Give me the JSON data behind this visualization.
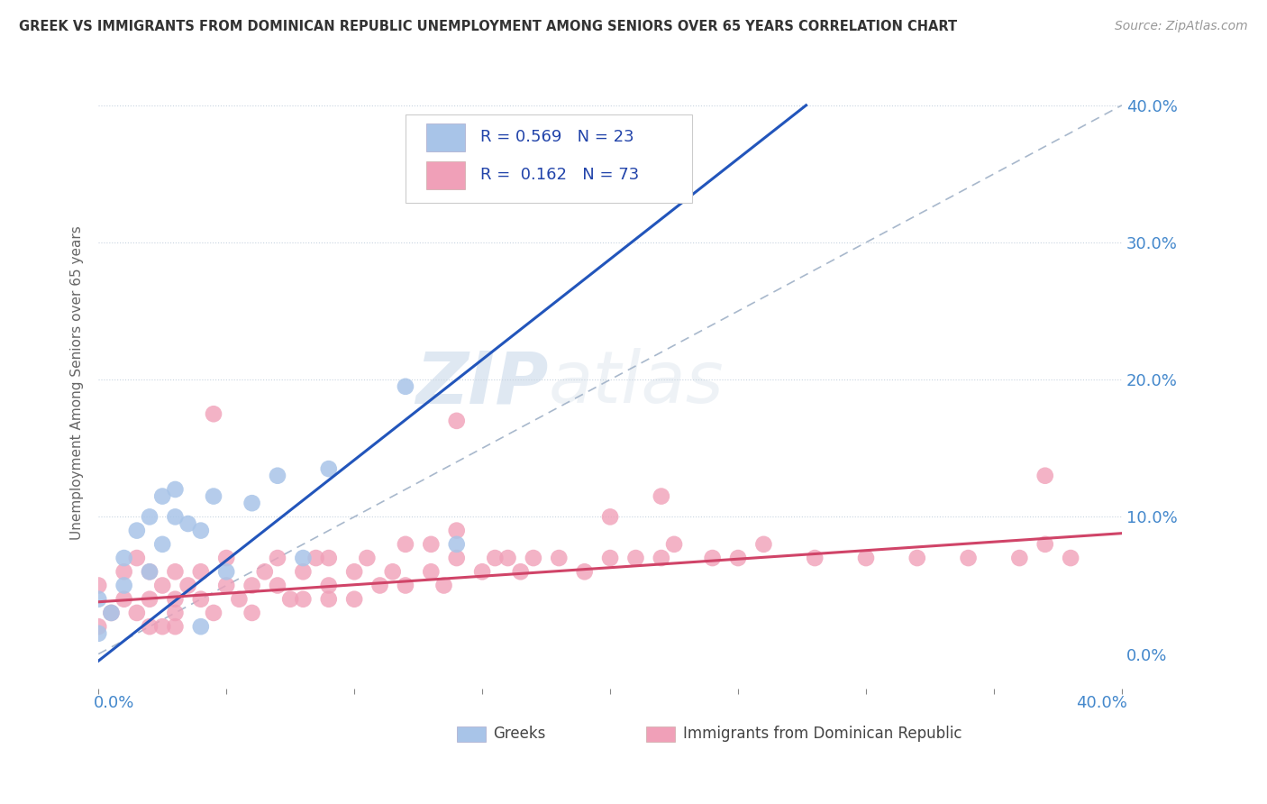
{
  "title": "GREEK VS IMMIGRANTS FROM DOMINICAN REPUBLIC UNEMPLOYMENT AMONG SENIORS OVER 65 YEARS CORRELATION CHART",
  "source": "Source: ZipAtlas.com",
  "ylabel": "Unemployment Among Seniors over 65 years",
  "greek_R": 0.569,
  "greek_N": 23,
  "dr_R": 0.162,
  "dr_N": 73,
  "greek_color": "#a8c4e8",
  "dr_color": "#f0a0b8",
  "greek_line_color": "#2255bb",
  "dr_line_color": "#d04468",
  "ref_line_color": "#a8b8cc",
  "legend_label_greek": "Greeks",
  "legend_label_dr": "Immigrants from Dominican Republic",
  "watermark_zip": "ZIP",
  "watermark_atlas": "atlas",
  "xlim": [
    0.0,
    0.4
  ],
  "ylim": [
    -0.025,
    0.42
  ],
  "yticks": [
    0.0,
    0.1,
    0.2,
    0.3,
    0.4
  ],
  "ytick_labels": [
    "0.0%",
    "10.0%",
    "20.0%",
    "30.0%",
    "40.0%"
  ],
  "greek_x": [
    0.0,
    0.0,
    0.005,
    0.01,
    0.01,
    0.015,
    0.02,
    0.02,
    0.025,
    0.025,
    0.03,
    0.03,
    0.035,
    0.04,
    0.04,
    0.045,
    0.05,
    0.06,
    0.07,
    0.08,
    0.09,
    0.12,
    0.14
  ],
  "greek_y": [
    0.015,
    0.04,
    0.03,
    0.05,
    0.07,
    0.09,
    0.06,
    0.1,
    0.08,
    0.115,
    0.1,
    0.12,
    0.095,
    0.02,
    0.09,
    0.115,
    0.06,
    0.11,
    0.13,
    0.07,
    0.135,
    0.195,
    0.08
  ],
  "dr_x": [
    0.0,
    0.0,
    0.005,
    0.01,
    0.01,
    0.015,
    0.015,
    0.02,
    0.02,
    0.02,
    0.025,
    0.025,
    0.03,
    0.03,
    0.03,
    0.03,
    0.035,
    0.04,
    0.04,
    0.045,
    0.05,
    0.05,
    0.055,
    0.06,
    0.06,
    0.065,
    0.07,
    0.07,
    0.075,
    0.08,
    0.08,
    0.085,
    0.09,
    0.09,
    0.1,
    0.1,
    0.105,
    0.11,
    0.115,
    0.12,
    0.12,
    0.13,
    0.13,
    0.135,
    0.14,
    0.14,
    0.15,
    0.155,
    0.16,
    0.165,
    0.17,
    0.18,
    0.19,
    0.2,
    0.21,
    0.22,
    0.225,
    0.24,
    0.25,
    0.26,
    0.28,
    0.3,
    0.32,
    0.34,
    0.36,
    0.37,
    0.38,
    0.045,
    0.09,
    0.14,
    0.2,
    0.22,
    0.37
  ],
  "dr_y": [
    0.02,
    0.05,
    0.03,
    0.04,
    0.06,
    0.03,
    0.07,
    0.04,
    0.06,
    0.02,
    0.05,
    0.02,
    0.04,
    0.06,
    0.03,
    0.02,
    0.05,
    0.04,
    0.06,
    0.03,
    0.05,
    0.07,
    0.04,
    0.05,
    0.03,
    0.06,
    0.05,
    0.07,
    0.04,
    0.06,
    0.04,
    0.07,
    0.05,
    0.07,
    0.06,
    0.04,
    0.07,
    0.05,
    0.06,
    0.05,
    0.08,
    0.06,
    0.08,
    0.05,
    0.07,
    0.09,
    0.06,
    0.07,
    0.07,
    0.06,
    0.07,
    0.07,
    0.06,
    0.07,
    0.07,
    0.07,
    0.08,
    0.07,
    0.07,
    0.08,
    0.07,
    0.07,
    0.07,
    0.07,
    0.07,
    0.08,
    0.07,
    0.175,
    0.04,
    0.17,
    0.1,
    0.115,
    0.13
  ],
  "greek_line_x0": 0.0,
  "greek_line_y0": -0.005,
  "greek_line_x1": 0.14,
  "greek_line_y1": 0.2,
  "dr_line_x0": 0.0,
  "dr_line_y0": 0.038,
  "dr_line_x1": 0.4,
  "dr_line_y1": 0.088
}
